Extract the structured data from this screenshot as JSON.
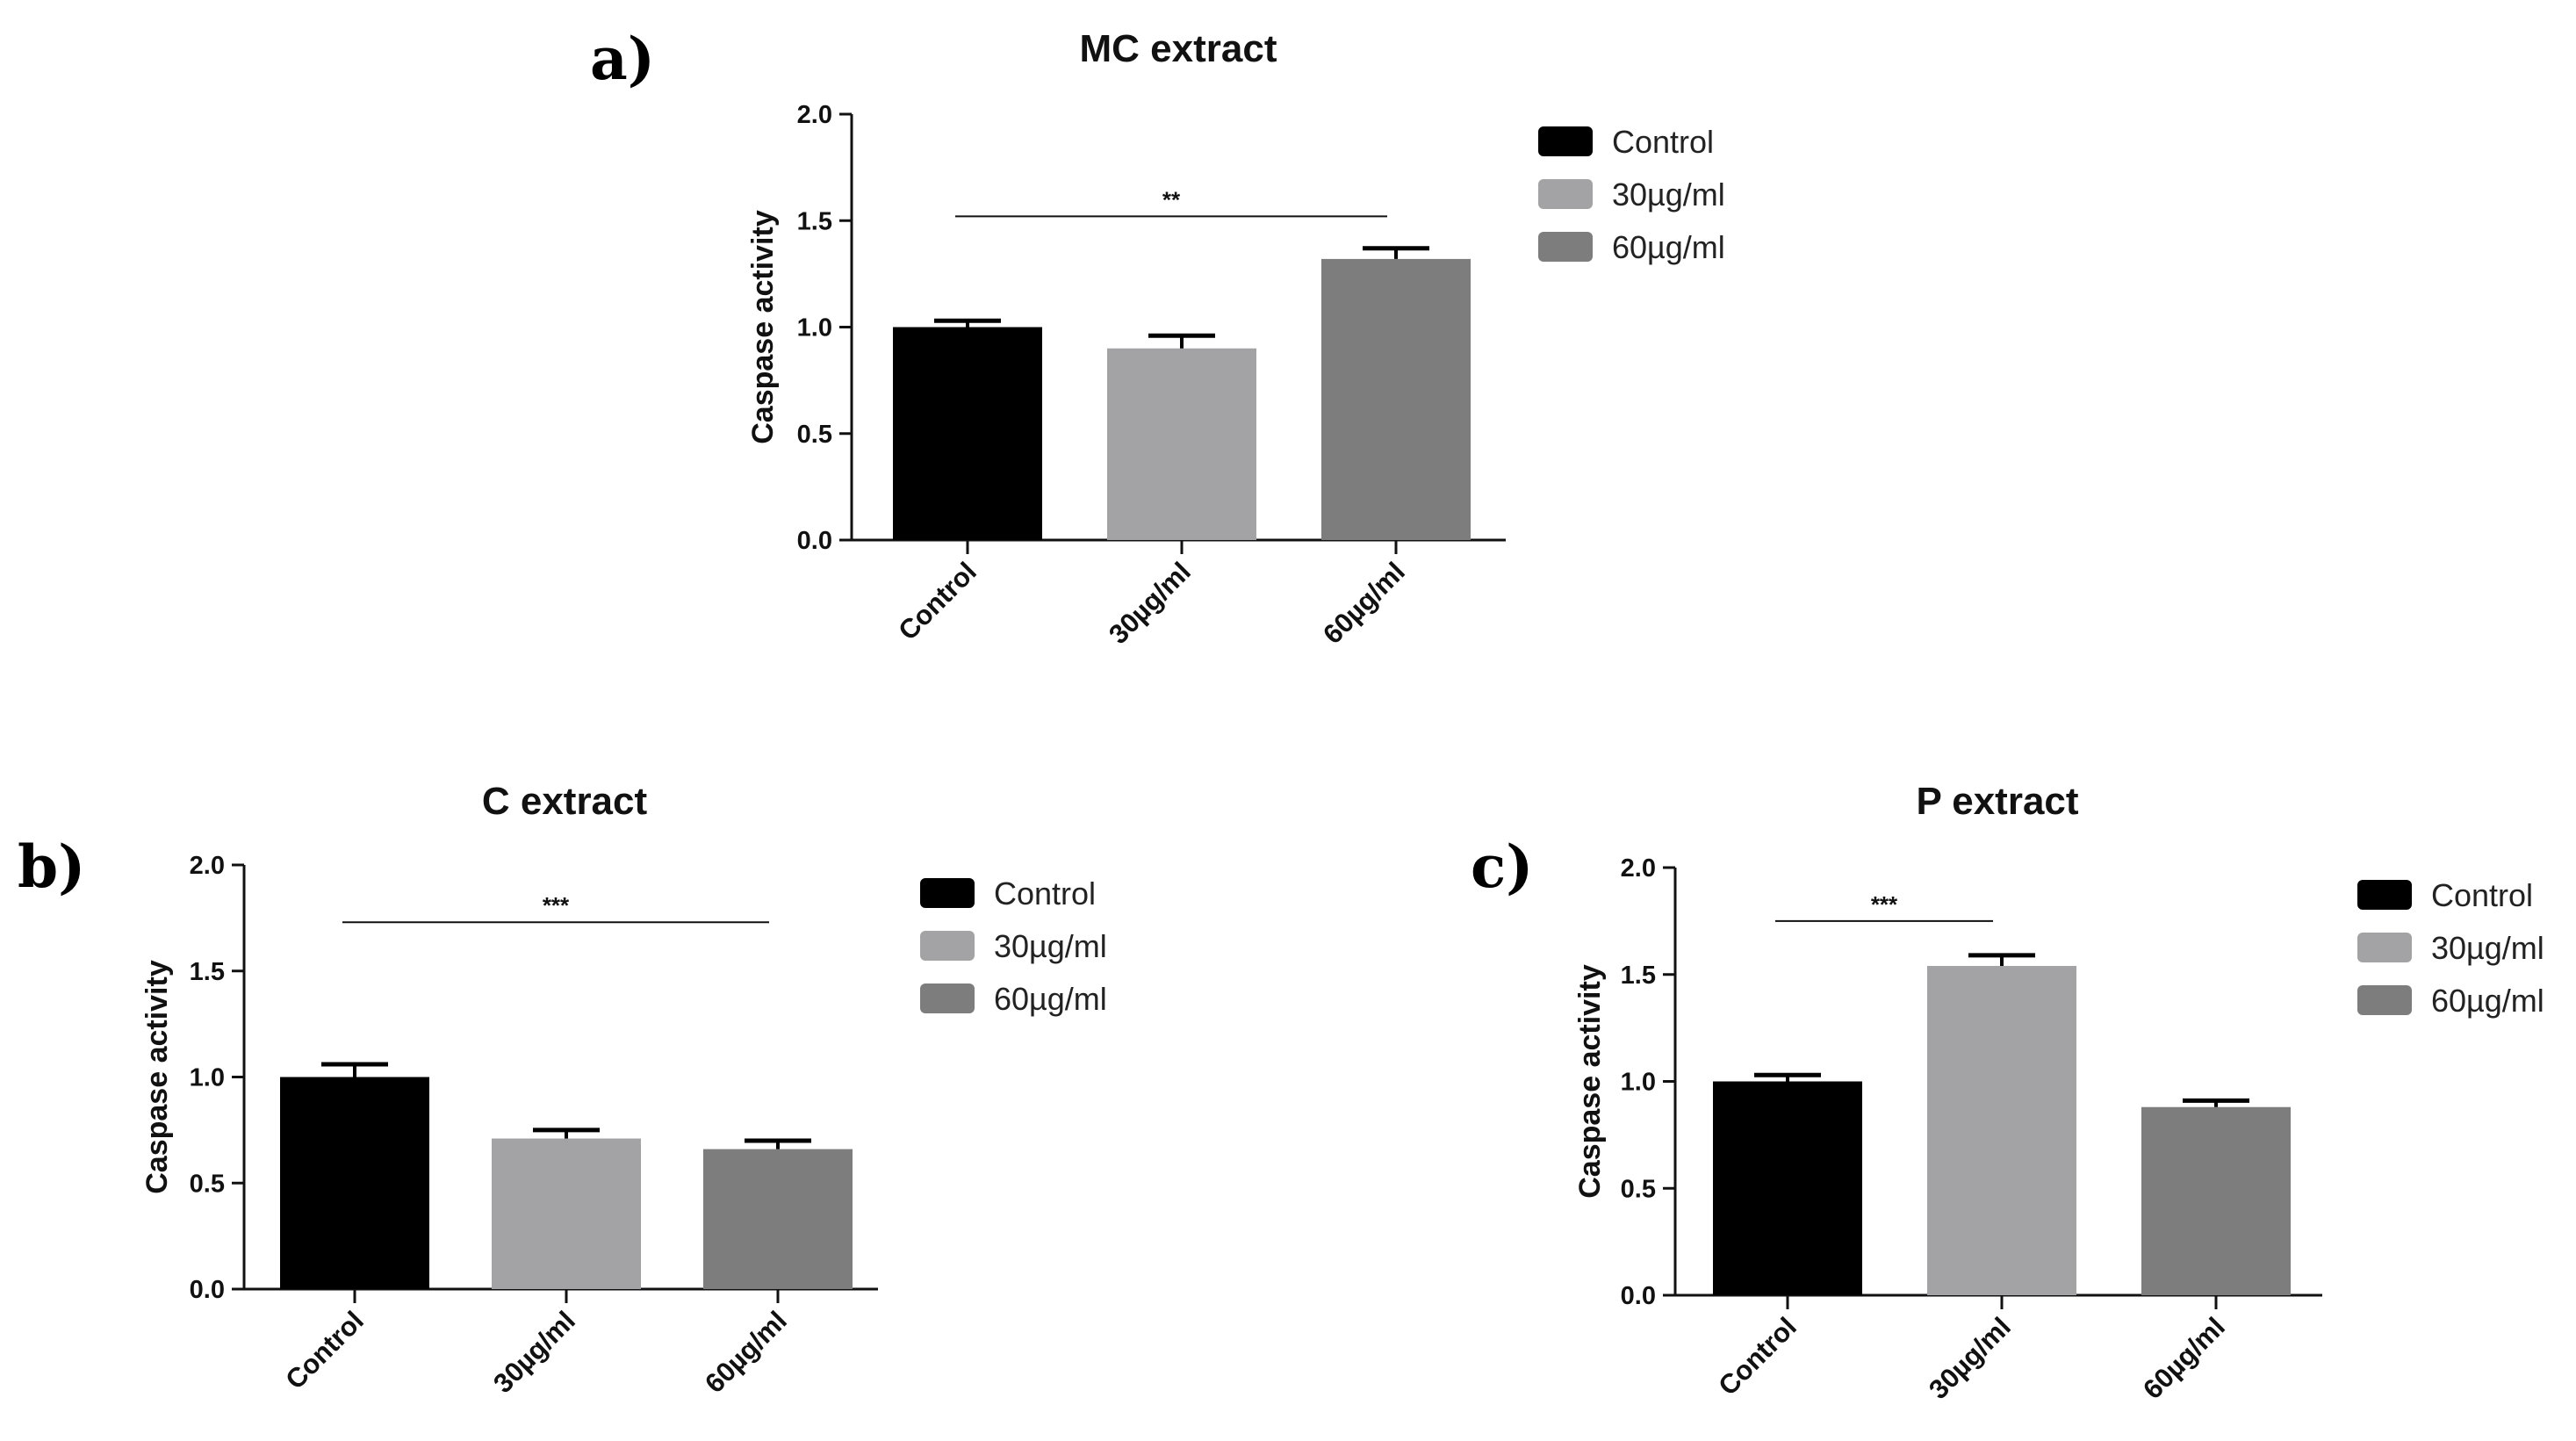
{
  "chart_data": [
    {
      "panel": "a)",
      "type": "bar",
      "title": "MC extract",
      "ylabel": "Caspase activity",
      "xlabel": "",
      "ylim": [
        0,
        2.0
      ],
      "yticks": [
        "0.0",
        "0.5",
        "1.0",
        "1.5",
        "2.0"
      ],
      "categories": [
        "Control",
        "30µg/ml",
        "60µg/ml"
      ],
      "values": [
        1.0,
        0.9,
        1.32
      ],
      "errors": [
        0.03,
        0.06,
        0.05
      ],
      "colors": [
        "#000000",
        "#a3a3a5",
        "#7d7d7d"
      ],
      "significance": {
        "from": 0,
        "to": 2,
        "label": "**",
        "level": 1.52
      },
      "legend": [
        "Control",
        "30µg/ml",
        "60µg/ml"
      ]
    },
    {
      "panel": "b)",
      "type": "bar",
      "title": "C extract",
      "ylabel": "Caspase activity",
      "xlabel": "",
      "ylim": [
        0,
        2.0
      ],
      "yticks": [
        "0.0",
        "0.5",
        "1.0",
        "1.5",
        "2.0"
      ],
      "categories": [
        "Control",
        "30µg/ml",
        "60µg/ml"
      ],
      "values": [
        1.0,
        0.71,
        0.66
      ],
      "errors": [
        0.06,
        0.04,
        0.04
      ],
      "colors": [
        "#000000",
        "#a3a3a5",
        "#7d7d7d"
      ],
      "significance": {
        "from": 0,
        "to": 2,
        "label": "***",
        "level": 1.73
      },
      "legend": [
        "Control",
        "30µg/ml",
        "60µg/ml"
      ]
    },
    {
      "panel": "c)",
      "type": "bar",
      "title": "P extract",
      "ylabel": "Caspase activity",
      "xlabel": "",
      "ylim": [
        0,
        2.0
      ],
      "yticks": [
        "0.0",
        "0.5",
        "1.0",
        "1.5",
        "2.0"
      ],
      "categories": [
        "Control",
        "30µg/ml",
        "60µg/ml"
      ],
      "values": [
        1.0,
        1.54,
        0.88
      ],
      "errors": [
        0.03,
        0.05,
        0.03
      ],
      "colors": [
        "#000000",
        "#a3a3a5",
        "#7d7d7d"
      ],
      "significance": {
        "from": 0,
        "to": 1,
        "label": "***",
        "level": 1.75
      },
      "legend": [
        "Control",
        "30µg/ml",
        "60µg/ml"
      ]
    }
  ]
}
